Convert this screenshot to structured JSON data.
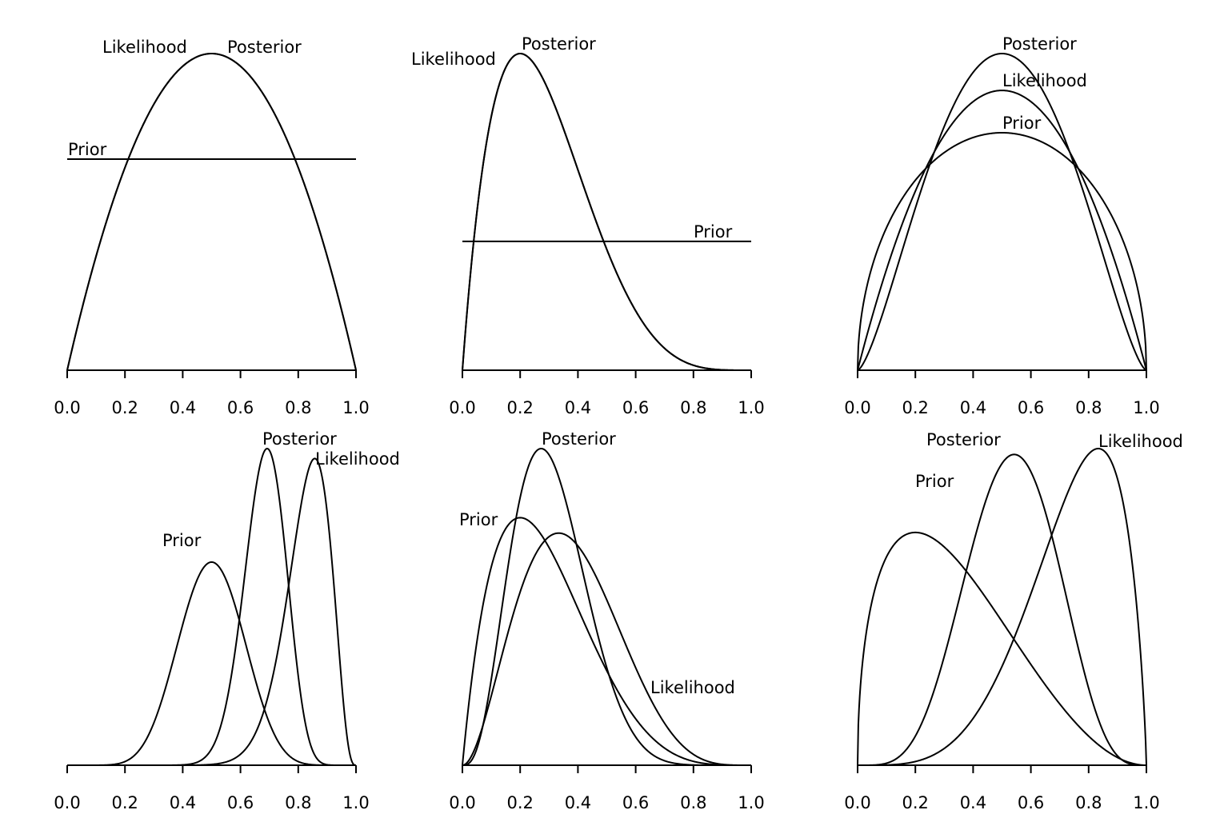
{
  "chart_data": [
    {
      "type": "line",
      "x_ticks": [
        "0.0",
        "0.2",
        "0.4",
        "0.6",
        "0.8",
        "1.0"
      ],
      "xlim": [
        0,
        1
      ],
      "series": [
        {
          "name": "Prior",
          "dist": "beta",
          "params": [
            1,
            1
          ]
        },
        {
          "name": "Likelihood",
          "dist": "beta",
          "params": [
            2,
            2
          ]
        },
        {
          "name": "Posterior",
          "dist": "beta",
          "params": [
            2,
            2
          ]
        }
      ]
    },
    {
      "type": "line",
      "x_ticks": [
        "0.0",
        "0.2",
        "0.4",
        "0.6",
        "0.8",
        "1.0"
      ],
      "xlim": [
        0,
        1
      ],
      "series": [
        {
          "name": "Prior",
          "dist": "beta",
          "params": [
            1,
            1
          ]
        },
        {
          "name": "Likelihood",
          "dist": "beta",
          "params": [
            2,
            5
          ]
        },
        {
          "name": "Posterior",
          "dist": "beta",
          "params": [
            2,
            5
          ]
        }
      ]
    },
    {
      "type": "line",
      "x_ticks": [
        "0.0",
        "0.2",
        "0.4",
        "0.6",
        "0.8",
        "1.0"
      ],
      "xlim": [
        0,
        1
      ],
      "series": [
        {
          "name": "Prior",
          "dist": "beta",
          "params": [
            1.5,
            1.5
          ]
        },
        {
          "name": "Likelihood",
          "dist": "beta",
          "params": [
            2,
            2
          ]
        },
        {
          "name": "Posterior",
          "dist": "beta",
          "params": [
            2.5,
            2.5
          ]
        }
      ]
    },
    {
      "type": "line",
      "x_ticks": [
        "0.0",
        "0.2",
        "0.4",
        "0.6",
        "0.8",
        "1.0"
      ],
      "xlim": [
        0,
        1
      ],
      "series": [
        {
          "name": "Prior",
          "dist": "beta",
          "params": [
            10,
            10
          ]
        },
        {
          "name": "Likelihood",
          "dist": "beta",
          "params": [
            19,
            4
          ]
        },
        {
          "name": "Posterior",
          "dist": "beta",
          "params": [
            28,
            13
          ]
        }
      ]
    },
    {
      "type": "line",
      "x_ticks": [
        "0.0",
        "0.2",
        "0.4",
        "0.6",
        "0.8",
        "1.0"
      ],
      "xlim": [
        0,
        1
      ],
      "series": [
        {
          "name": "Prior",
          "dist": "beta",
          "params": [
            2,
            5
          ]
        },
        {
          "name": "Likelihood",
          "dist": "beta",
          "params": [
            3,
            5
          ]
        },
        {
          "name": "Posterior",
          "dist": "beta",
          "params": [
            4,
            9
          ]
        }
      ]
    },
    {
      "type": "line",
      "x_ticks": [
        "0.0",
        "0.2",
        "0.4",
        "0.6",
        "0.8",
        "1.0"
      ],
      "xlim": [
        0,
        1
      ],
      "series": [
        {
          "name": "Prior",
          "dist": "beta",
          "params": [
            1.5,
            3
          ]
        },
        {
          "name": "Likelihood",
          "dist": "beta",
          "params": [
            5,
            1.8
          ]
        },
        {
          "name": "Posterior",
          "dist": "beta",
          "params": [
            5.5,
            4.8
          ]
        }
      ]
    }
  ]
}
